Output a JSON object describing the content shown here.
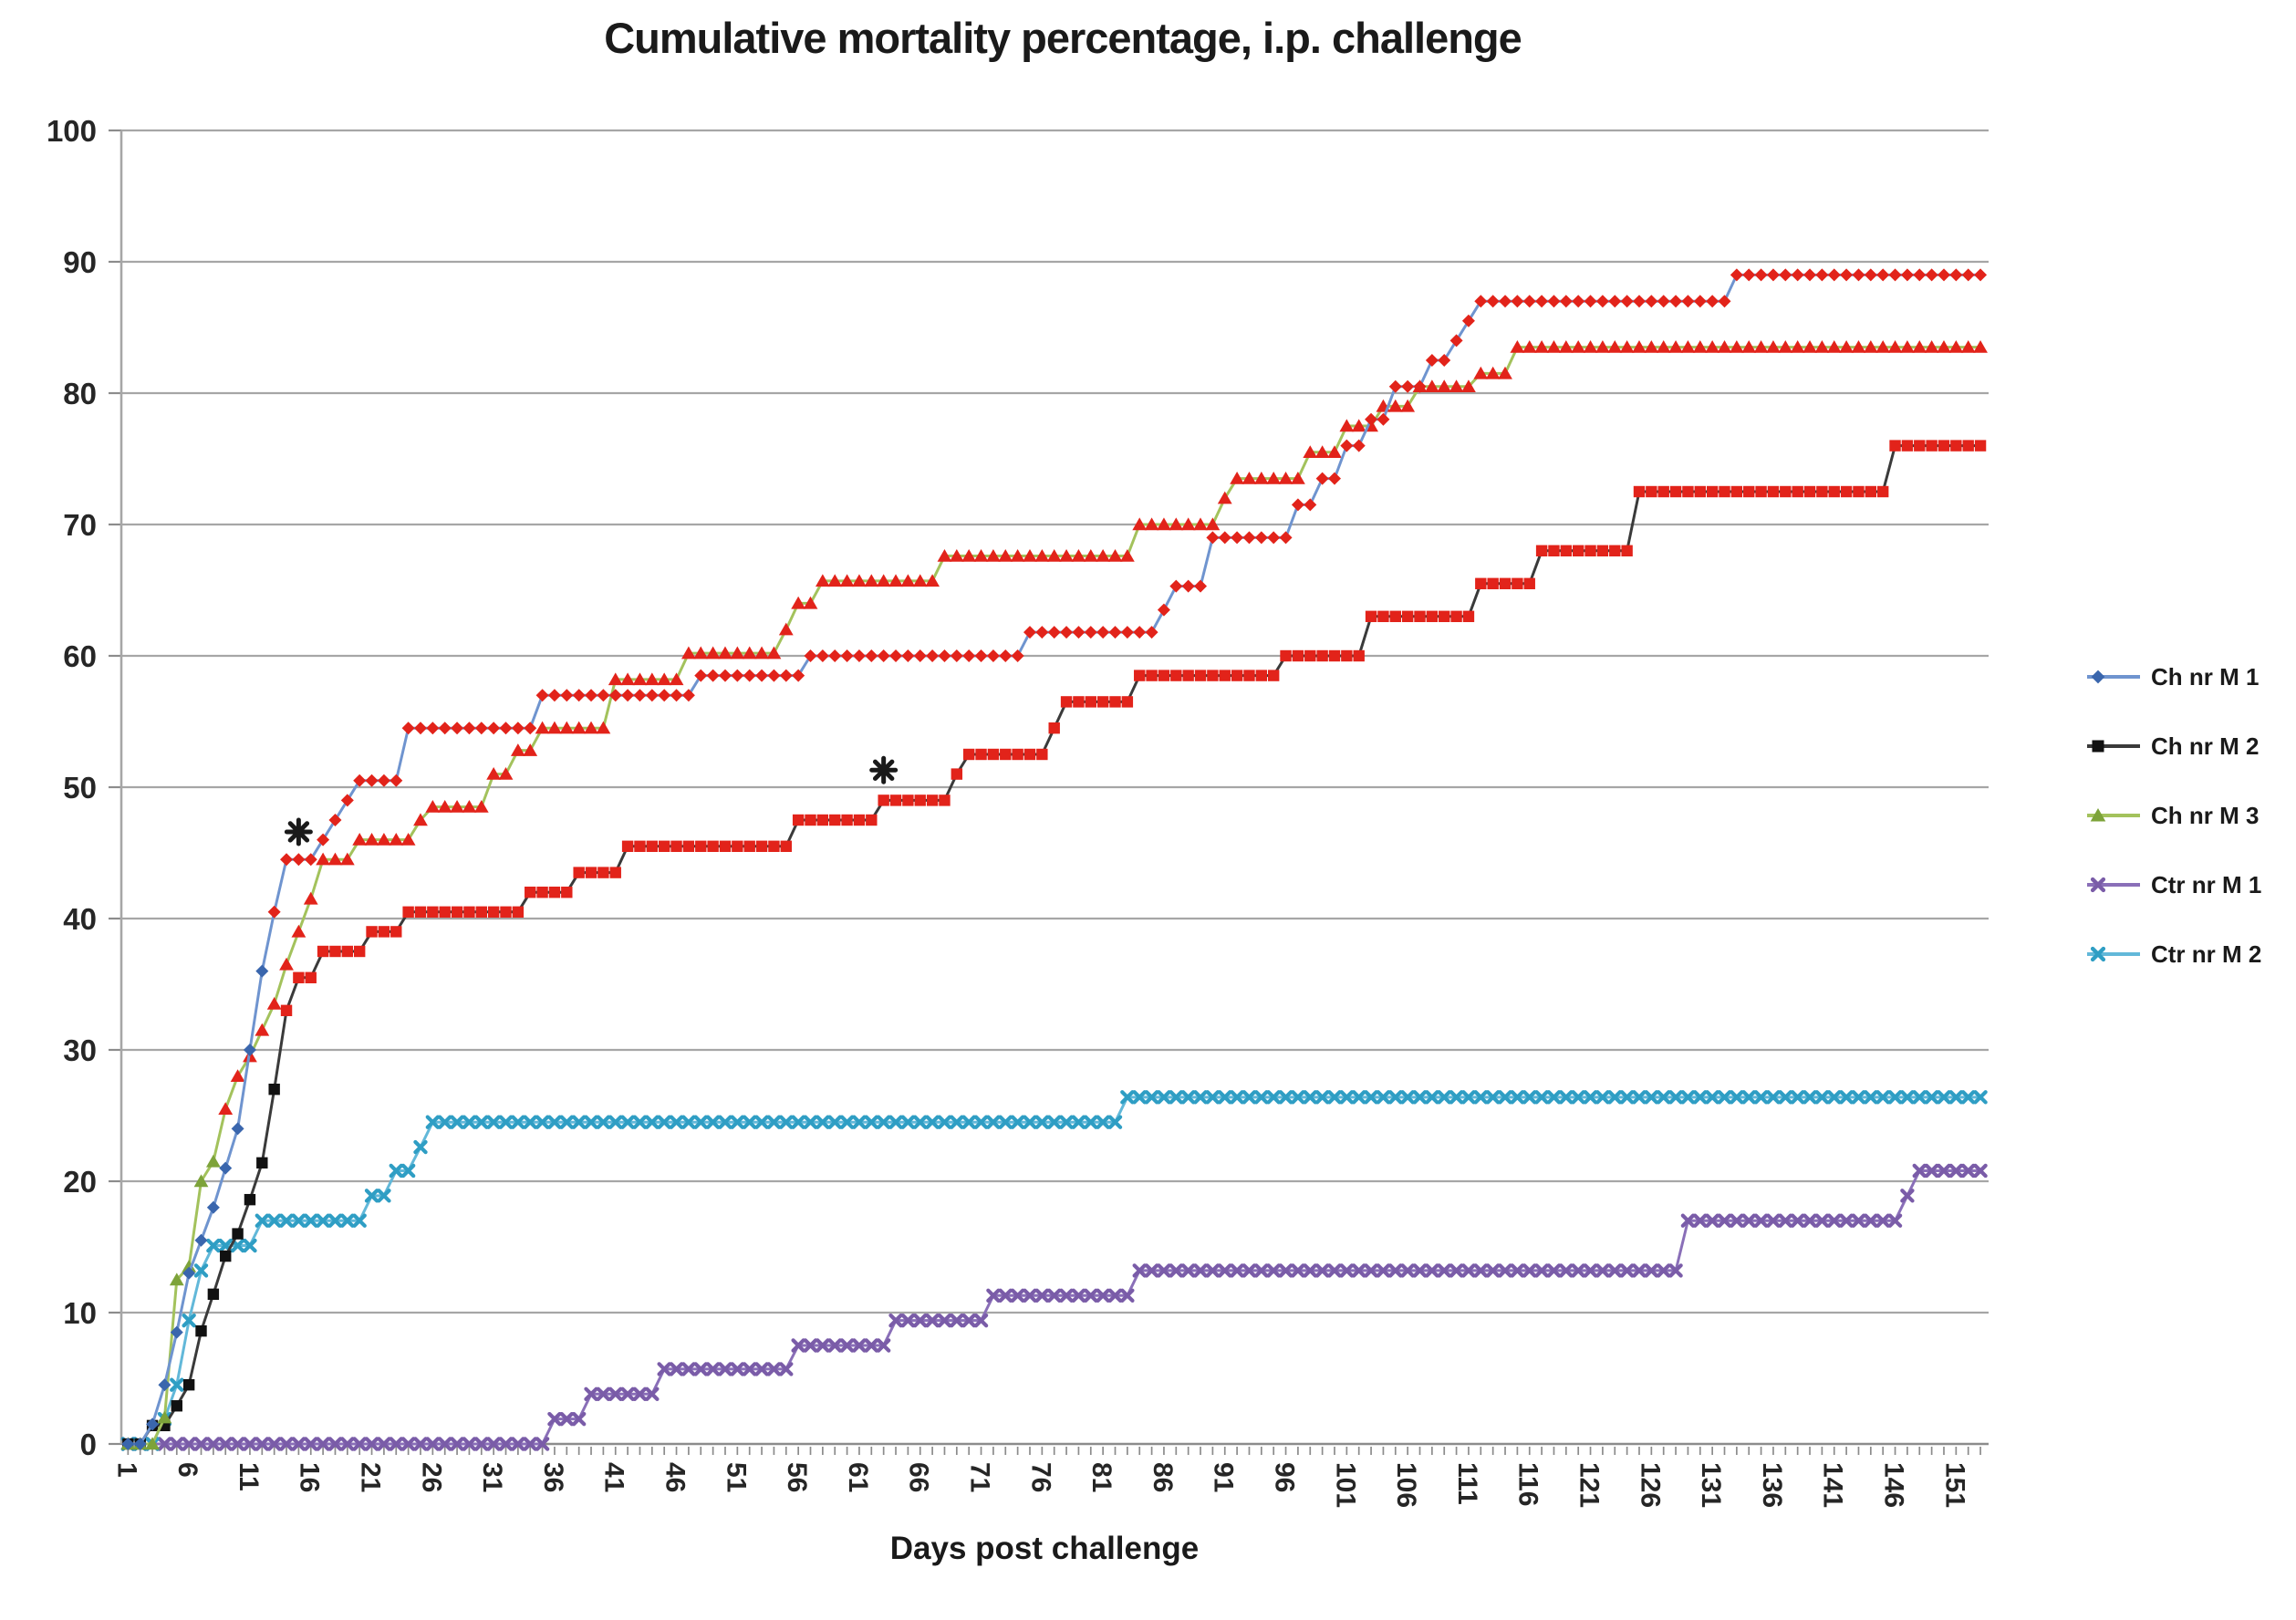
{
  "title": "Cumulative mortality percentage, i.p. challenge",
  "x_axis_label": "Days post challenge",
  "chart_data": {
    "type": "line",
    "title": "Cumulative mortality percentage, i.p. challenge",
    "xlabel": "Days post challenge",
    "ylabel": "",
    "xlim": [
      1,
      153
    ],
    "ylim": [
      0,
      100
    ],
    "grid": "horizontal-gridlines",
    "legend_position": "right",
    "end_day": 153,
    "y_ticks": [
      0,
      10,
      20,
      30,
      40,
      50,
      60,
      70,
      80,
      90,
      100
    ],
    "x_tick_labels": [
      "1",
      "6",
      "11",
      "16",
      "21",
      "26",
      "31",
      "36",
      "41",
      "46",
      "51",
      "56",
      "61",
      "66",
      "71",
      "76",
      "81",
      "86",
      "91",
      "96",
      "101",
      "106",
      "111",
      "116",
      "121",
      "126",
      "131",
      "136",
      "141",
      "146",
      "151"
    ],
    "x_label_interval_days": 5,
    "colors": {
      "gridline": "#a6a6a6",
      "axis": "#8c8c8c",
      "tick": "#8c8c8c",
      "label_text": "#262626",
      "marker_red": "#e2231a",
      "annotation": "#1a1a1a",
      "background": "#ffffff"
    },
    "series": [
      {
        "name": "Ch nr M 1",
        "marker": "diamond",
        "line_color": "#6f94cf",
        "marker_color": "#3a66ad",
        "marker_red_from_day": 13,
        "steps": [
          [
            1,
            0
          ],
          [
            3,
            1.5
          ],
          [
            4,
            4.5
          ],
          [
            5,
            8.5
          ],
          [
            6,
            13
          ],
          [
            7,
            15.5
          ],
          [
            8,
            18
          ],
          [
            9,
            21
          ],
          [
            10,
            24
          ],
          [
            11,
            30
          ],
          [
            12,
            36
          ],
          [
            13,
            40.5
          ],
          [
            14,
            44.5
          ],
          [
            17,
            46
          ],
          [
            18,
            47.5
          ],
          [
            19,
            49
          ],
          [
            20,
            50.5
          ],
          [
            24,
            54.5
          ],
          [
            35,
            57
          ],
          [
            48,
            58.5
          ],
          [
            57,
            60
          ],
          [
            75,
            61.8
          ],
          [
            86,
            63.5
          ],
          [
            87,
            65.3
          ],
          [
            90,
            69
          ],
          [
            97,
            71.5
          ],
          [
            99,
            73.5
          ],
          [
            101,
            76
          ],
          [
            103,
            78
          ],
          [
            105,
            80.5
          ],
          [
            108,
            82.5
          ],
          [
            110,
            84
          ],
          [
            111,
            85.5
          ],
          [
            112,
            87
          ],
          [
            133,
            89
          ]
        ]
      },
      {
        "name": "Ch nr M 2",
        "marker": "square",
        "line_color": "#3a3a3a",
        "marker_color": "#111111",
        "marker_red_from_day": 14,
        "steps": [
          [
            1,
            0
          ],
          [
            3,
            1.4
          ],
          [
            5,
            2.9
          ],
          [
            6,
            4.5
          ],
          [
            7,
            8.6
          ],
          [
            8,
            11.4
          ],
          [
            9,
            14.3
          ],
          [
            10,
            16
          ],
          [
            11,
            18.6
          ],
          [
            12,
            21.4
          ],
          [
            13,
            27
          ],
          [
            14,
            33
          ],
          [
            15,
            35.5
          ],
          [
            17,
            37.5
          ],
          [
            21,
            39
          ],
          [
            24,
            40.5
          ],
          [
            34,
            42
          ],
          [
            38,
            43.5
          ],
          [
            42,
            45.5
          ],
          [
            56,
            47.5
          ],
          [
            63,
            49
          ],
          [
            69,
            51
          ],
          [
            70,
            52.5
          ],
          [
            77,
            54.5
          ],
          [
            78,
            56.5
          ],
          [
            84,
            58.5
          ],
          [
            96,
            60
          ],
          [
            103,
            63
          ],
          [
            112,
            65.5
          ],
          [
            117,
            68
          ],
          [
            125,
            72.5
          ],
          [
            146,
            76
          ]
        ]
      },
      {
        "name": "Ch nr M 3",
        "marker": "triangle",
        "line_color": "#a3c25c",
        "marker_color": "#7da33a",
        "marker_red_from_day": 9,
        "steps": [
          [
            1,
            0
          ],
          [
            4,
            2
          ],
          [
            5,
            12.5
          ],
          [
            6,
            13.5
          ],
          [
            7,
            20
          ],
          [
            8,
            21.5
          ],
          [
            9,
            25.5
          ],
          [
            10,
            28
          ],
          [
            11,
            29.5
          ],
          [
            12,
            31.5
          ],
          [
            13,
            33.5
          ],
          [
            14,
            36.5
          ],
          [
            15,
            39
          ],
          [
            16,
            41.5
          ],
          [
            17,
            44.5
          ],
          [
            20,
            46
          ],
          [
            25,
            47.5
          ],
          [
            26,
            48.5
          ],
          [
            31,
            51
          ],
          [
            33,
            52.8
          ],
          [
            35,
            54.5
          ],
          [
            41,
            58.2
          ],
          [
            47,
            60.2
          ],
          [
            55,
            62
          ],
          [
            56,
            64
          ],
          [
            58,
            65.7
          ],
          [
            68,
            67.6
          ],
          [
            84,
            70
          ],
          [
            91,
            72
          ],
          [
            92,
            73.5
          ],
          [
            98,
            75.5
          ],
          [
            101,
            77.5
          ],
          [
            104,
            79
          ],
          [
            107,
            80.5
          ],
          [
            112,
            81.5
          ],
          [
            115,
            83.5
          ]
        ]
      },
      {
        "name": "Ctr nr M 1",
        "marker": "x",
        "line_color": "#8a6fb8",
        "marker_color": "#7a5ca8",
        "marker_red_from_day": null,
        "steps": [
          [
            1,
            0
          ],
          [
            36,
            1.9
          ],
          [
            39,
            3.8
          ],
          [
            45,
            5.7
          ],
          [
            56,
            7.5
          ],
          [
            64,
            9.4
          ],
          [
            72,
            11.3
          ],
          [
            84,
            13.2
          ],
          [
            129,
            17
          ],
          [
            147,
            18.9
          ],
          [
            148,
            20.8
          ]
        ]
      },
      {
        "name": "Ctr nr M 2",
        "marker": "x",
        "line_color": "#62b8d9",
        "marker_color": "#2f9ec4",
        "marker_red_from_day": null,
        "steps": [
          [
            1,
            0
          ],
          [
            4,
            1.9
          ],
          [
            5,
            4.5
          ],
          [
            6,
            9.4
          ],
          [
            7,
            13.2
          ],
          [
            8,
            15.1
          ],
          [
            12,
            17
          ],
          [
            21,
            18.9
          ],
          [
            23,
            20.8
          ],
          [
            25,
            22.6
          ],
          [
            26,
            24.5
          ],
          [
            83,
            26.4
          ]
        ]
      }
    ],
    "annotations": [
      {
        "symbol": "*",
        "day": 15,
        "value": 46.6
      },
      {
        "symbol": "*",
        "day": 63,
        "value": 51.3
      }
    ]
  }
}
